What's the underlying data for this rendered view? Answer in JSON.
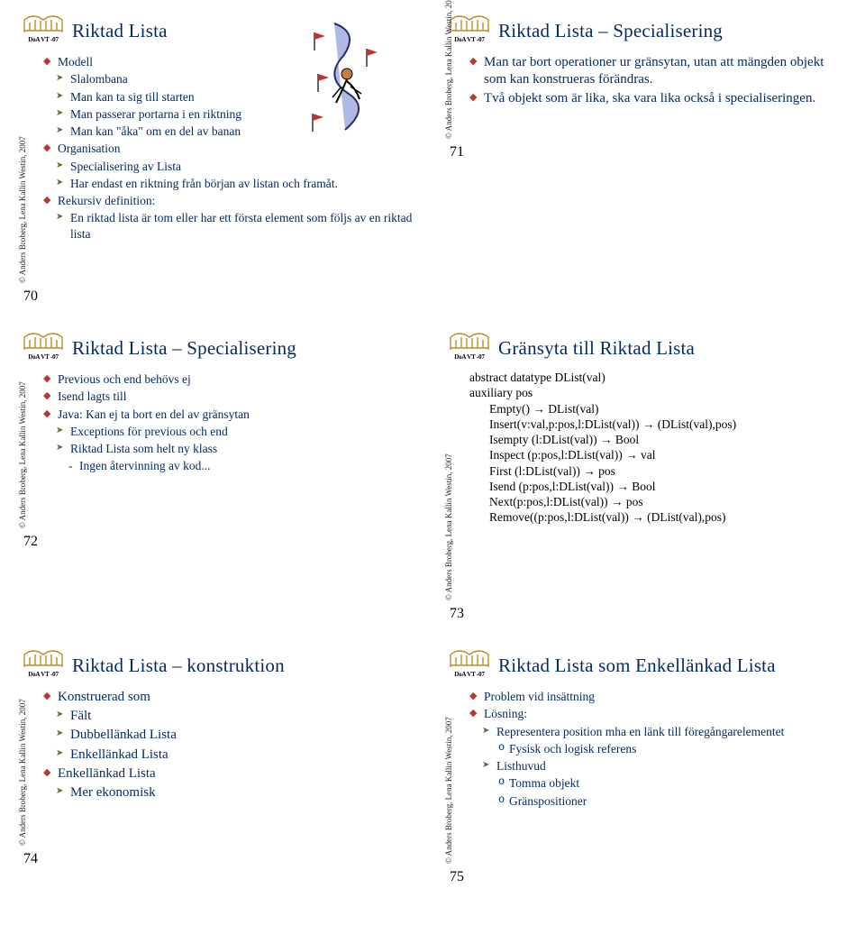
{
  "corner_caption": "DoA VT -07",
  "copyright": "© Anders Broberg, Lena Kallin Westin, 2007",
  "colors": {
    "title": "#072a62",
    "text": "#072a62",
    "diamond": "#b33b2e",
    "arrow": "#5f6a3a",
    "black": "#000000"
  },
  "slides": [
    {
      "num": "70",
      "title": "Riktad Lista",
      "items": [
        {
          "lvl": "diamond",
          "t": "Modell"
        },
        {
          "lvl": "arrow",
          "t": "Slalombana"
        },
        {
          "lvl": "arrow",
          "t": "Man kan ta sig till starten"
        },
        {
          "lvl": "arrow",
          "t": "Man passerar portarna i en riktning"
        },
        {
          "lvl": "arrow",
          "t": "Man kan \"åka\" om en del av banan"
        },
        {
          "lvl": "diamond",
          "t": "Organisation"
        },
        {
          "lvl": "arrow",
          "t": "Specialisering av Lista"
        },
        {
          "lvl": "arrow",
          "t": "Har endast en riktning från början av listan och framåt."
        },
        {
          "lvl": "diamond",
          "t": "Rekursiv definition:"
        },
        {
          "lvl": "arrow",
          "t": "En riktad lista är tom eller har ett första element som följs av en riktad lista"
        }
      ],
      "has_slalom": true
    },
    {
      "num": "71",
      "title": "Riktad Lista – Specialisering",
      "font": "big",
      "items": [
        {
          "lvl": "diamond",
          "t": "Man tar bort operationer ur gränsytan, utan att mängden objekt som kan konstrueras förändras."
        },
        {
          "lvl": "diamond",
          "t": "Två objekt som är lika, ska vara lika också i specialiseringen."
        }
      ]
    },
    {
      "num": "72",
      "title": "Riktad Lista – Specialisering",
      "items": [
        {
          "lvl": "diamond",
          "t": "Previous och end behövs ej"
        },
        {
          "lvl": "diamond",
          "t": "Isend lagts till"
        },
        {
          "lvl": "diamond",
          "t": "Java: Kan ej ta bort en del av gränsytan"
        },
        {
          "lvl": "arrow",
          "t": "Exceptions för previous och end"
        },
        {
          "lvl": "arrow",
          "t": "Riktad Lista som helt ny klass"
        },
        {
          "lvl": "dash",
          "t": "Ingen återvinning av kod..."
        }
      ]
    },
    {
      "num": "73",
      "title": "Gränsyta till Riktad Lista",
      "black": true,
      "items": [
        {
          "lvl": "plain",
          "t": "abstract datatype  DList(val)"
        },
        {
          "lvl": "plain",
          "t": "auxiliary pos"
        },
        {
          "lvl": "indent",
          "t": "Empty() → DList(val)"
        },
        {
          "lvl": "indent",
          "t": "Insert(v:val,p:pos,l:DList(val)) → (DList(val),pos)"
        },
        {
          "lvl": "indent",
          "t": "Isempty (l:DList(val)) → Bool"
        },
        {
          "lvl": "indent",
          "t": "Inspect (p:pos,l:DList(val)) → val"
        },
        {
          "lvl": "indent",
          "t": "First (l:DList(val)) → pos"
        },
        {
          "lvl": "indent",
          "t": "Isend (p:pos,l:DList(val)) → Bool"
        },
        {
          "lvl": "indent",
          "t": "Next(p:pos,l:DList(val)) → pos"
        },
        {
          "lvl": "indent",
          "t": "Remove((p:pos,l:DList(val)) → (DList(val),pos)"
        }
      ]
    },
    {
      "num": "74",
      "title": "Riktad Lista – konstruktion",
      "font": "big",
      "items": [
        {
          "lvl": "diamond",
          "t": "Konstruerad som"
        },
        {
          "lvl": "arrow",
          "t": "Fält"
        },
        {
          "lvl": "arrow",
          "t": "Dubbellänkad Lista"
        },
        {
          "lvl": "arrow",
          "t": "Enkellänkad Lista"
        },
        {
          "lvl": "diamond",
          "t": "Enkellänkad Lista"
        },
        {
          "lvl": "arrow",
          "t": "Mer ekonomisk"
        }
      ]
    },
    {
      "num": "75",
      "title": "Riktad Lista som Enkellänkad Lista",
      "items": [
        {
          "lvl": "diamond",
          "t": "Problem vid insättning"
        },
        {
          "lvl": "diamond",
          "t": "Lösning:"
        },
        {
          "lvl": "arrow",
          "t": "Representera position mha en länk till föregångarelementet"
        },
        {
          "lvl": "o",
          "t": "Fysisk och logisk referens"
        },
        {
          "lvl": "arrow",
          "t": "Listhuvud"
        },
        {
          "lvl": "o",
          "t": "Tomma objekt"
        },
        {
          "lvl": "o",
          "t": "Gränspositioner"
        }
      ]
    }
  ]
}
